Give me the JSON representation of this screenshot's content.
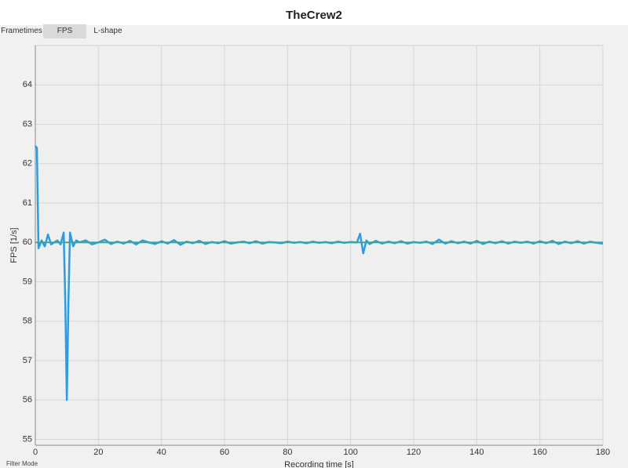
{
  "tabs": [
    "Frametimes",
    "FPS",
    "L-shape"
  ],
  "footer": "Filter Mode",
  "chart_data": {
    "type": "line",
    "title": "TheCrew2",
    "x_label": "Recording time [s]",
    "y_label": "FPS [1/s]",
    "xlim": [
      0,
      180
    ],
    "ylim": [
      54.85,
      65
    ],
    "xticks": [
      0,
      20,
      40,
      60,
      80,
      100,
      120,
      140,
      160,
      180
    ],
    "yticks": [
      55,
      56,
      57,
      58,
      59,
      60,
      61,
      62,
      63,
      64
    ],
    "grid": true,
    "series": [
      {
        "color": "#2e9be6",
        "x": [
          0,
          0.5,
          1,
          2,
          3,
          4,
          5,
          6,
          7,
          8,
          9,
          9.5,
          10,
          10.5,
          11,
          12,
          13,
          14,
          16,
          18,
          20,
          22,
          24,
          26,
          28,
          30,
          32,
          34,
          36,
          38,
          40,
          42,
          44,
          46,
          48,
          50,
          52,
          54,
          56,
          58,
          60,
          62,
          64,
          66,
          68,
          70,
          72,
          74,
          76,
          78,
          80,
          82,
          84,
          86,
          88,
          90,
          92,
          94,
          96,
          98,
          100,
          102,
          103,
          104,
          105,
          106,
          108,
          110,
          112,
          114,
          116,
          118,
          120,
          122,
          124,
          126,
          128,
          130,
          132,
          134,
          136,
          138,
          140,
          142,
          144,
          146,
          148,
          150,
          152,
          154,
          156,
          158,
          160,
          162,
          164,
          166,
          168,
          170,
          172,
          174,
          176,
          178,
          180
        ],
        "values": [
          62.45,
          62.4,
          59.85,
          60.05,
          59.9,
          60.2,
          59.95,
          60.0,
          60.05,
          59.95,
          60.25,
          58.5,
          56.0,
          58.5,
          60.25,
          59.9,
          60.05,
          60.0,
          60.05,
          59.95,
          60.0,
          60.07,
          59.96,
          60.02,
          59.97,
          60.04,
          59.95,
          60.05,
          60.0,
          59.96,
          60.03,
          59.97,
          60.06,
          59.94,
          60.02,
          59.98,
          60.04,
          59.96,
          60.01,
          59.98,
          60.03,
          59.97,
          60.0,
          60.02,
          59.98,
          60.03,
          59.97,
          60.01,
          60.0,
          59.98,
          60.02,
          59.99,
          60.01,
          59.98,
          60.02,
          59.99,
          60.01,
          59.98,
          60.02,
          59.99,
          60.01,
          60.0,
          60.22,
          59.72,
          60.05,
          59.96,
          60.04,
          59.97,
          60.02,
          59.98,
          60.03,
          59.97,
          60.01,
          59.99,
          60.02,
          59.96,
          60.07,
          59.97,
          60.03,
          59.98,
          60.02,
          59.97,
          60.04,
          59.96,
          60.02,
          59.98,
          60.03,
          59.97,
          60.02,
          59.99,
          60.02,
          59.97,
          60.03,
          59.98,
          60.04,
          59.96,
          60.02,
          59.98,
          60.03,
          59.97,
          60.02,
          59.99,
          59.97
        ]
      },
      {
        "color": "#3aaa8a",
        "x": [
          0,
          180
        ],
        "values": [
          60,
          60
        ]
      }
    ]
  }
}
